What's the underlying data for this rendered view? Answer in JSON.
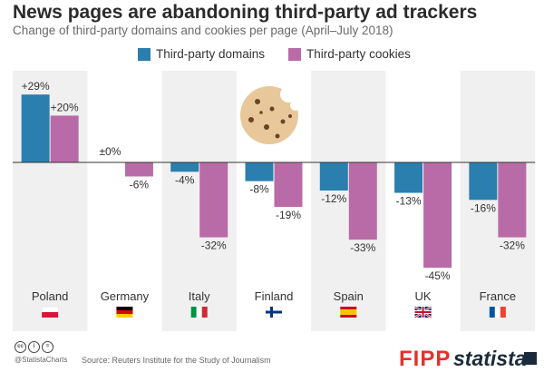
{
  "title": "News pages are abandoning third-party ad trackers",
  "subtitle": "Change of third-party domains and cookies per page (April–July 2018)",
  "colors": {
    "domains": "#2a7fae",
    "cookies": "#b96ba7",
    "band": "#f0f0f0"
  },
  "chart_data": {
    "type": "bar",
    "title": "News pages are abandoning third-party ad trackers",
    "subtitle": "Change of third-party domains and cookies per page (April–July 2018)",
    "categories": [
      "Poland",
      "Germany",
      "Italy",
      "Finland",
      "Spain",
      "UK",
      "France"
    ],
    "series": [
      {
        "name": "Third-party domains",
        "values": [
          29,
          0,
          -4,
          -8,
          -12,
          -13,
          -16
        ],
        "labels": [
          "+29%",
          "±0%",
          "-4%",
          "-8%",
          "-12%",
          "-13%",
          "-16%"
        ]
      },
      {
        "name": "Third-party cookies",
        "values": [
          20,
          -6,
          -32,
          -19,
          -33,
          -45,
          -32
        ],
        "labels": [
          "+20%",
          "-6%",
          "-32%",
          "-19%",
          "-33%",
          "-45%",
          "-32%"
        ]
      }
    ],
    "ylim": [
      -45,
      29
    ],
    "legend": "top",
    "grid": false
  },
  "icons": {
    "cookie": "cookie-icon",
    "flags": [
      "flag-poland-icon",
      "flag-germany-icon",
      "flag-italy-icon",
      "flag-finland-icon",
      "flag-spain-icon",
      "flag-uk-icon",
      "flag-france-icon"
    ]
  },
  "footer": {
    "handle": "@StatistaCharts",
    "source": "Source: Reuters Institute for the Study of Journalism",
    "fipp": "FIPP",
    "statista": "statista"
  }
}
